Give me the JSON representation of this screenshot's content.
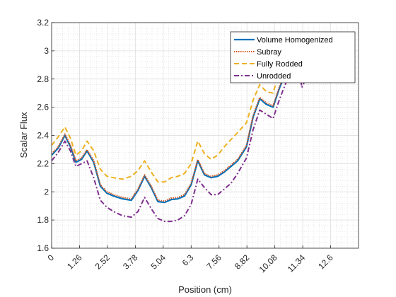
{
  "chart_data": {
    "type": "line",
    "title": "",
    "xlabel": "Position (cm)",
    "ylabel": "Scalar Flux",
    "xlim": [
      0,
      13.86
    ],
    "ylim": [
      1.6,
      3.2
    ],
    "x_ticks": [
      "0",
      "1.26",
      "2.52",
      "3.78",
      "5.04",
      "6.3",
      "7.56",
      "8.82",
      "10.08",
      "11.34",
      "12.6"
    ],
    "y_ticks": [
      "1.6",
      "1.8",
      "2",
      "2.2",
      "2.4",
      "2.6",
      "2.8",
      "3",
      "3.2"
    ],
    "grid": true,
    "minor_grid": true,
    "legend_position": "top-right",
    "series": [
      {
        "name": "Volume Homogenized",
        "color": "#0072BD",
        "style": "solid",
        "x": [
          0,
          0.3,
          0.6,
          0.85,
          1.1,
          1.35,
          1.6,
          1.9,
          2.2,
          2.5,
          2.8,
          3.2,
          3.6,
          3.9,
          4.2,
          4.5,
          4.8,
          5.1,
          5.4,
          5.7,
          6.0,
          6.3,
          6.6,
          6.9,
          7.2,
          7.5,
          7.8,
          8.1,
          8.4,
          8.8,
          9.1,
          9.4,
          9.7,
          10.0,
          10.3,
          10.6,
          10.9,
          11.1
        ],
        "y": [
          2.26,
          2.31,
          2.4,
          2.32,
          2.21,
          2.23,
          2.29,
          2.21,
          2.04,
          1.99,
          1.97,
          1.95,
          1.94,
          2.01,
          2.11,
          2.03,
          1.93,
          1.925,
          1.945,
          1.95,
          1.97,
          2.05,
          2.22,
          2.12,
          2.1,
          2.11,
          2.14,
          2.18,
          2.22,
          2.32,
          2.53,
          2.66,
          2.62,
          2.6,
          2.74,
          2.85,
          2.99,
          3.08
        ]
      },
      {
        "name": "Subray",
        "color": "#D95319",
        "style": "dotted",
        "x": [
          0,
          0.3,
          0.6,
          0.85,
          1.1,
          1.35,
          1.6,
          1.9,
          2.2,
          2.5,
          2.8,
          3.2,
          3.6,
          3.9,
          4.2,
          4.5,
          4.8,
          5.1,
          5.4,
          5.7,
          6.0,
          6.3,
          6.6,
          6.9,
          7.2,
          7.5,
          7.8,
          8.1,
          8.4,
          8.8,
          9.1,
          9.4,
          9.7,
          10.0,
          10.3,
          10.6,
          10.9,
          11.1
        ],
        "y": [
          2.27,
          2.32,
          2.41,
          2.33,
          2.22,
          2.24,
          2.3,
          2.22,
          2.05,
          2.0,
          1.98,
          1.96,
          1.95,
          2.02,
          2.12,
          2.04,
          1.94,
          1.935,
          1.955,
          1.96,
          1.98,
          2.06,
          2.23,
          2.13,
          2.11,
          2.12,
          2.15,
          2.19,
          2.23,
          2.33,
          2.54,
          2.67,
          2.63,
          2.61,
          2.75,
          2.86,
          3.0,
          3.09
        ]
      },
      {
        "name": "Fully Rodded",
        "color": "#EDB120",
        "style": "dashed",
        "x": [
          0,
          0.3,
          0.6,
          0.85,
          1.1,
          1.35,
          1.6,
          1.9,
          2.2,
          2.5,
          2.8,
          3.2,
          3.6,
          3.9,
          4.2,
          4.5,
          4.8,
          5.1,
          5.4,
          5.7,
          6.0,
          6.3,
          6.6,
          6.9,
          7.2,
          7.5,
          7.8,
          8.1,
          8.4,
          8.8,
          9.1,
          9.4,
          9.7,
          10.0,
          10.3,
          10.6,
          10.9,
          11.1
        ],
        "y": [
          2.33,
          2.39,
          2.46,
          2.38,
          2.26,
          2.29,
          2.36,
          2.29,
          2.16,
          2.11,
          2.1,
          2.09,
          2.11,
          2.15,
          2.22,
          2.14,
          2.07,
          2.07,
          2.1,
          2.11,
          2.13,
          2.2,
          2.36,
          2.27,
          2.23,
          2.26,
          2.32,
          2.37,
          2.42,
          2.49,
          2.65,
          2.76,
          2.71,
          2.7,
          2.86,
          2.95,
          3.05,
          3.12
        ]
      },
      {
        "name": "Unrodded",
        "color": "#7E2F8E",
        "style": "dashdot",
        "x": [
          0,
          0.3,
          0.6,
          0.85,
          1.1,
          1.35,
          1.6,
          1.9,
          2.2,
          2.5,
          2.8,
          3.2,
          3.6,
          3.9,
          4.2,
          4.5,
          4.8,
          5.1,
          5.4,
          5.7,
          6.0,
          6.3,
          6.6,
          6.9,
          7.2,
          7.5,
          7.8,
          8.1,
          8.4,
          8.8,
          9.1,
          9.4,
          9.7,
          10.0,
          10.3,
          10.6,
          10.9,
          11.1,
          11.3,
          11.45
        ],
        "y": [
          2.22,
          2.28,
          2.36,
          2.29,
          2.18,
          2.2,
          2.22,
          2.1,
          1.94,
          1.89,
          1.86,
          1.83,
          1.82,
          1.86,
          1.96,
          1.88,
          1.81,
          1.79,
          1.79,
          1.8,
          1.83,
          1.91,
          2.09,
          2.03,
          1.98,
          1.98,
          2.02,
          2.06,
          2.13,
          2.24,
          2.44,
          2.58,
          2.55,
          2.52,
          2.66,
          2.78,
          2.92,
          2.95,
          2.74,
          2.79
        ]
      }
    ]
  }
}
